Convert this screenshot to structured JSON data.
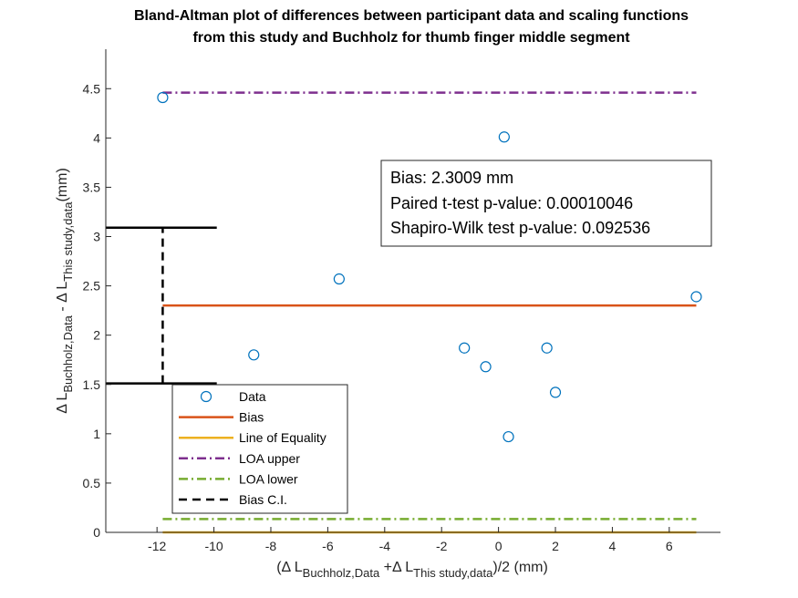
{
  "chart_data": {
    "type": "scatter",
    "title_lines": [
      "Bland-Altman plot of differences between participant data and scaling functions",
      "from this study and Buchholz for thumb finger middle segment"
    ],
    "xlabel": {
      "prefix": "(Δ L",
      "sub1": "Buchholz,Data",
      "mid": " +Δ L",
      "sub2": "This study,data",
      "suffix": ")/2 (mm)"
    },
    "ylabel": {
      "prefix": "Δ L",
      "sub1": "Buchholz,Data",
      "mid": " - Δ L",
      "sub2": "This study,data",
      "suffix": "(mm)"
    },
    "xlim": [
      -13.8,
      7.8
    ],
    "ylim": [
      0,
      4.9
    ],
    "xticks": [
      -12,
      -10,
      -8,
      -6,
      -4,
      -2,
      0,
      2,
      4,
      6
    ],
    "yticks": [
      0,
      0.5,
      1,
      1.5,
      2,
      2.5,
      3,
      3.5,
      4,
      4.5
    ],
    "xtick_labels": [
      "-12",
      "-10",
      "-8",
      "-6",
      "-4",
      "-2",
      "0",
      "2",
      "4",
      "6"
    ],
    "ytick_labels": [
      "0",
      "0.5",
      "1",
      "1.5",
      "2",
      "2.5",
      "3",
      "3.5",
      "4",
      "4.5"
    ],
    "grid": false,
    "series": [
      {
        "name": "Data",
        "kind": "scatter",
        "color": "#0072BD",
        "points": [
          {
            "x": -11.8,
            "y": 4.41
          },
          {
            "x": -8.6,
            "y": 1.8
          },
          {
            "x": -5.6,
            "y": 2.57
          },
          {
            "x": -1.2,
            "y": 1.87
          },
          {
            "x": -0.45,
            "y": 1.68
          },
          {
            "x": 0.2,
            "y": 4.01
          },
          {
            "x": 0.35,
            "y": 0.97
          },
          {
            "x": 1.7,
            "y": 1.87
          },
          {
            "x": 2.0,
            "y": 1.42
          },
          {
            "x": 6.95,
            "y": 2.39
          }
        ]
      },
      {
        "name": "Bias",
        "kind": "hline",
        "color": "#D95319",
        "y": 2.3009,
        "x_from": -11.8,
        "x_to": 6.95,
        "dash": "solid"
      },
      {
        "name": "Line of Equality",
        "kind": "hline",
        "color": "#EDB120",
        "y": 0,
        "x_from": -11.8,
        "x_to": 6.95,
        "dash": "solid"
      },
      {
        "name": "LOA upper",
        "kind": "hline",
        "color": "#7E2F8E",
        "y": 4.46,
        "x_from": -11.8,
        "x_to": 6.95,
        "dash": "dashdot"
      },
      {
        "name": "LOA lower",
        "kind": "hline",
        "color": "#77AC30",
        "y": 0.135,
        "x_from": -11.8,
        "x_to": 6.95,
        "dash": "dashdot"
      },
      {
        "name": "Bias C.I.",
        "kind": "ci",
        "color": "#000000",
        "x": -11.8,
        "low": 1.51,
        "high": 3.09,
        "cap_from": -13.8,
        "cap_to": -9.9,
        "dash": "dashed"
      }
    ],
    "annotation": [
      "Bias: 2.3009 mm",
      "Paired t-test p-value: 0.00010046",
      "Shapiro-Wilk test p-value: 0.092536"
    ],
    "legend_position": "bottom-left"
  }
}
